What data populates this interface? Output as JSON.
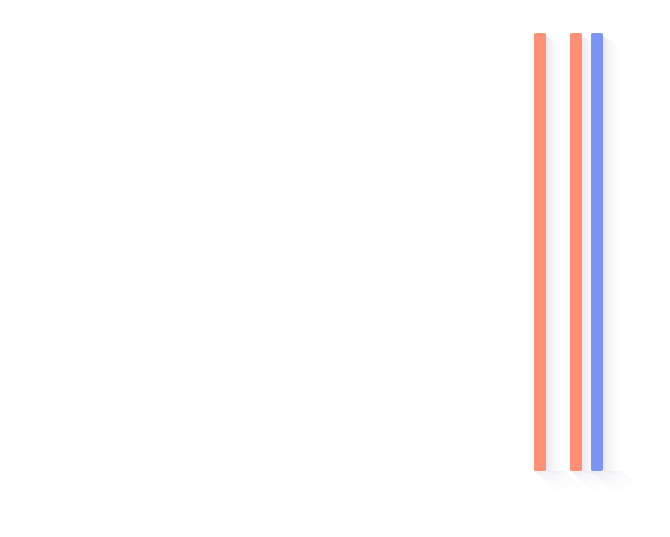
{
  "bars": [
    {
      "color": "#ff8f75"
    },
    {
      "color": "#ff8f75"
    },
    {
      "color": "#7b95f5"
    }
  ]
}
